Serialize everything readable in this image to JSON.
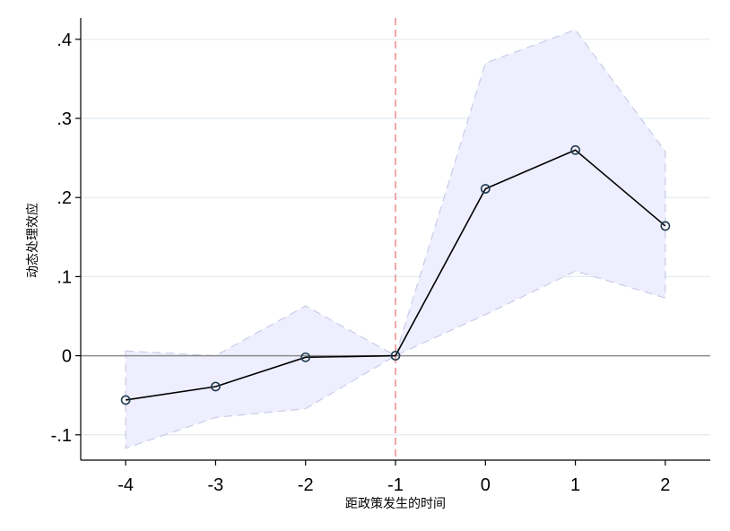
{
  "chart_data": {
    "type": "line",
    "title": "",
    "xlabel": "距政策发生的时间",
    "ylabel": "动态处理效应",
    "x": [
      -4,
      -3,
      -2,
      -1,
      0,
      1,
      2
    ],
    "x_tick_labels": [
      "-4",
      "-3",
      "-2",
      "-1",
      "0",
      "1",
      "2"
    ],
    "xlim": [
      -4.5,
      2.5
    ],
    "y_ticks": [
      -0.1,
      0,
      0.1,
      0.2,
      0.3,
      0.4
    ],
    "y_tick_labels": [
      "-.1",
      "0",
      ".1",
      ".2",
      ".3",
      ".4"
    ],
    "ylim": [
      -0.132,
      0.427
    ],
    "series": [
      {
        "values": [
          -0.056,
          -0.039,
          -0.002,
          0.0,
          0.211,
          0.26,
          0.164
        ]
      }
    ],
    "confidence_band": {
      "lower": [
        -0.117,
        -0.078,
        -0.067,
        0.0,
        0.052,
        0.107,
        0.073
      ],
      "upper": [
        0.006,
        0.0,
        0.063,
        0.0,
        0.37,
        0.412,
        0.258
      ]
    },
    "reference_lines": {
      "vertical_x": -1,
      "horizontal_y": 0
    },
    "grid": true,
    "colors": {
      "line": "#000000",
      "marker": "#1f3a4f",
      "band_fill": "#eeeeff",
      "band_edge": "#c8cce6",
      "reference_vertical": "#f08a8a",
      "zero_line": "#8c8c8c",
      "grid": "#e2eaf0"
    }
  }
}
